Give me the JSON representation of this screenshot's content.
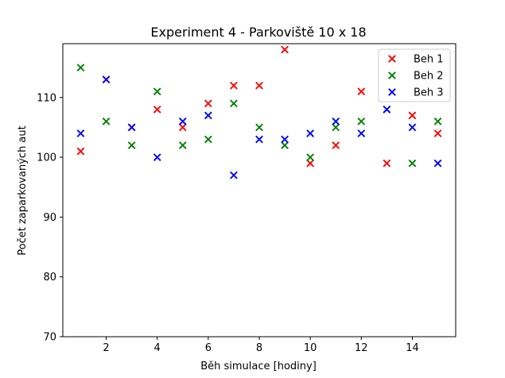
{
  "chart_data": {
    "type": "scatter",
    "title": "Experiment 4 - Parkoviště 10 x 18",
    "xlabel": "Běh simulace [hodiny]",
    "ylabel": "Počet zaparkovaných aut",
    "xlim": [
      0.3,
      15.7
    ],
    "ylim": [
      70,
      119
    ],
    "xticks": [
      2,
      4,
      6,
      8,
      10,
      12,
      14
    ],
    "yticks": [
      70,
      80,
      90,
      100,
      110
    ],
    "marker": "x",
    "grid": false,
    "legend_position": "top-right",
    "series": [
      {
        "name": "Beh 1",
        "color": "#ff0000",
        "x": [
          1,
          2,
          3,
          4,
          5,
          6,
          7,
          8,
          9,
          10,
          11,
          12,
          13,
          14,
          15
        ],
        "y": [
          101,
          113,
          105,
          108,
          105,
          109,
          112,
          112,
          118,
          99,
          102,
          111,
          99,
          107,
          104
        ]
      },
      {
        "name": "Beh 2",
        "color": "#008000",
        "x": [
          1,
          2,
          3,
          4,
          5,
          6,
          7,
          8,
          9,
          10,
          11,
          12,
          13,
          14,
          15
        ],
        "y": [
          115,
          106,
          102,
          111,
          102,
          103,
          109,
          105,
          102,
          100,
          105,
          106,
          108,
          99,
          106
        ]
      },
      {
        "name": "Beh 3",
        "color": "#0000ff",
        "x": [
          1,
          2,
          3,
          4,
          5,
          6,
          7,
          8,
          9,
          10,
          11,
          12,
          13,
          14,
          15
        ],
        "y": [
          104,
          113,
          105,
          100,
          106,
          107,
          97,
          103,
          103,
          104,
          106,
          104,
          108,
          105,
          99
        ]
      }
    ]
  }
}
